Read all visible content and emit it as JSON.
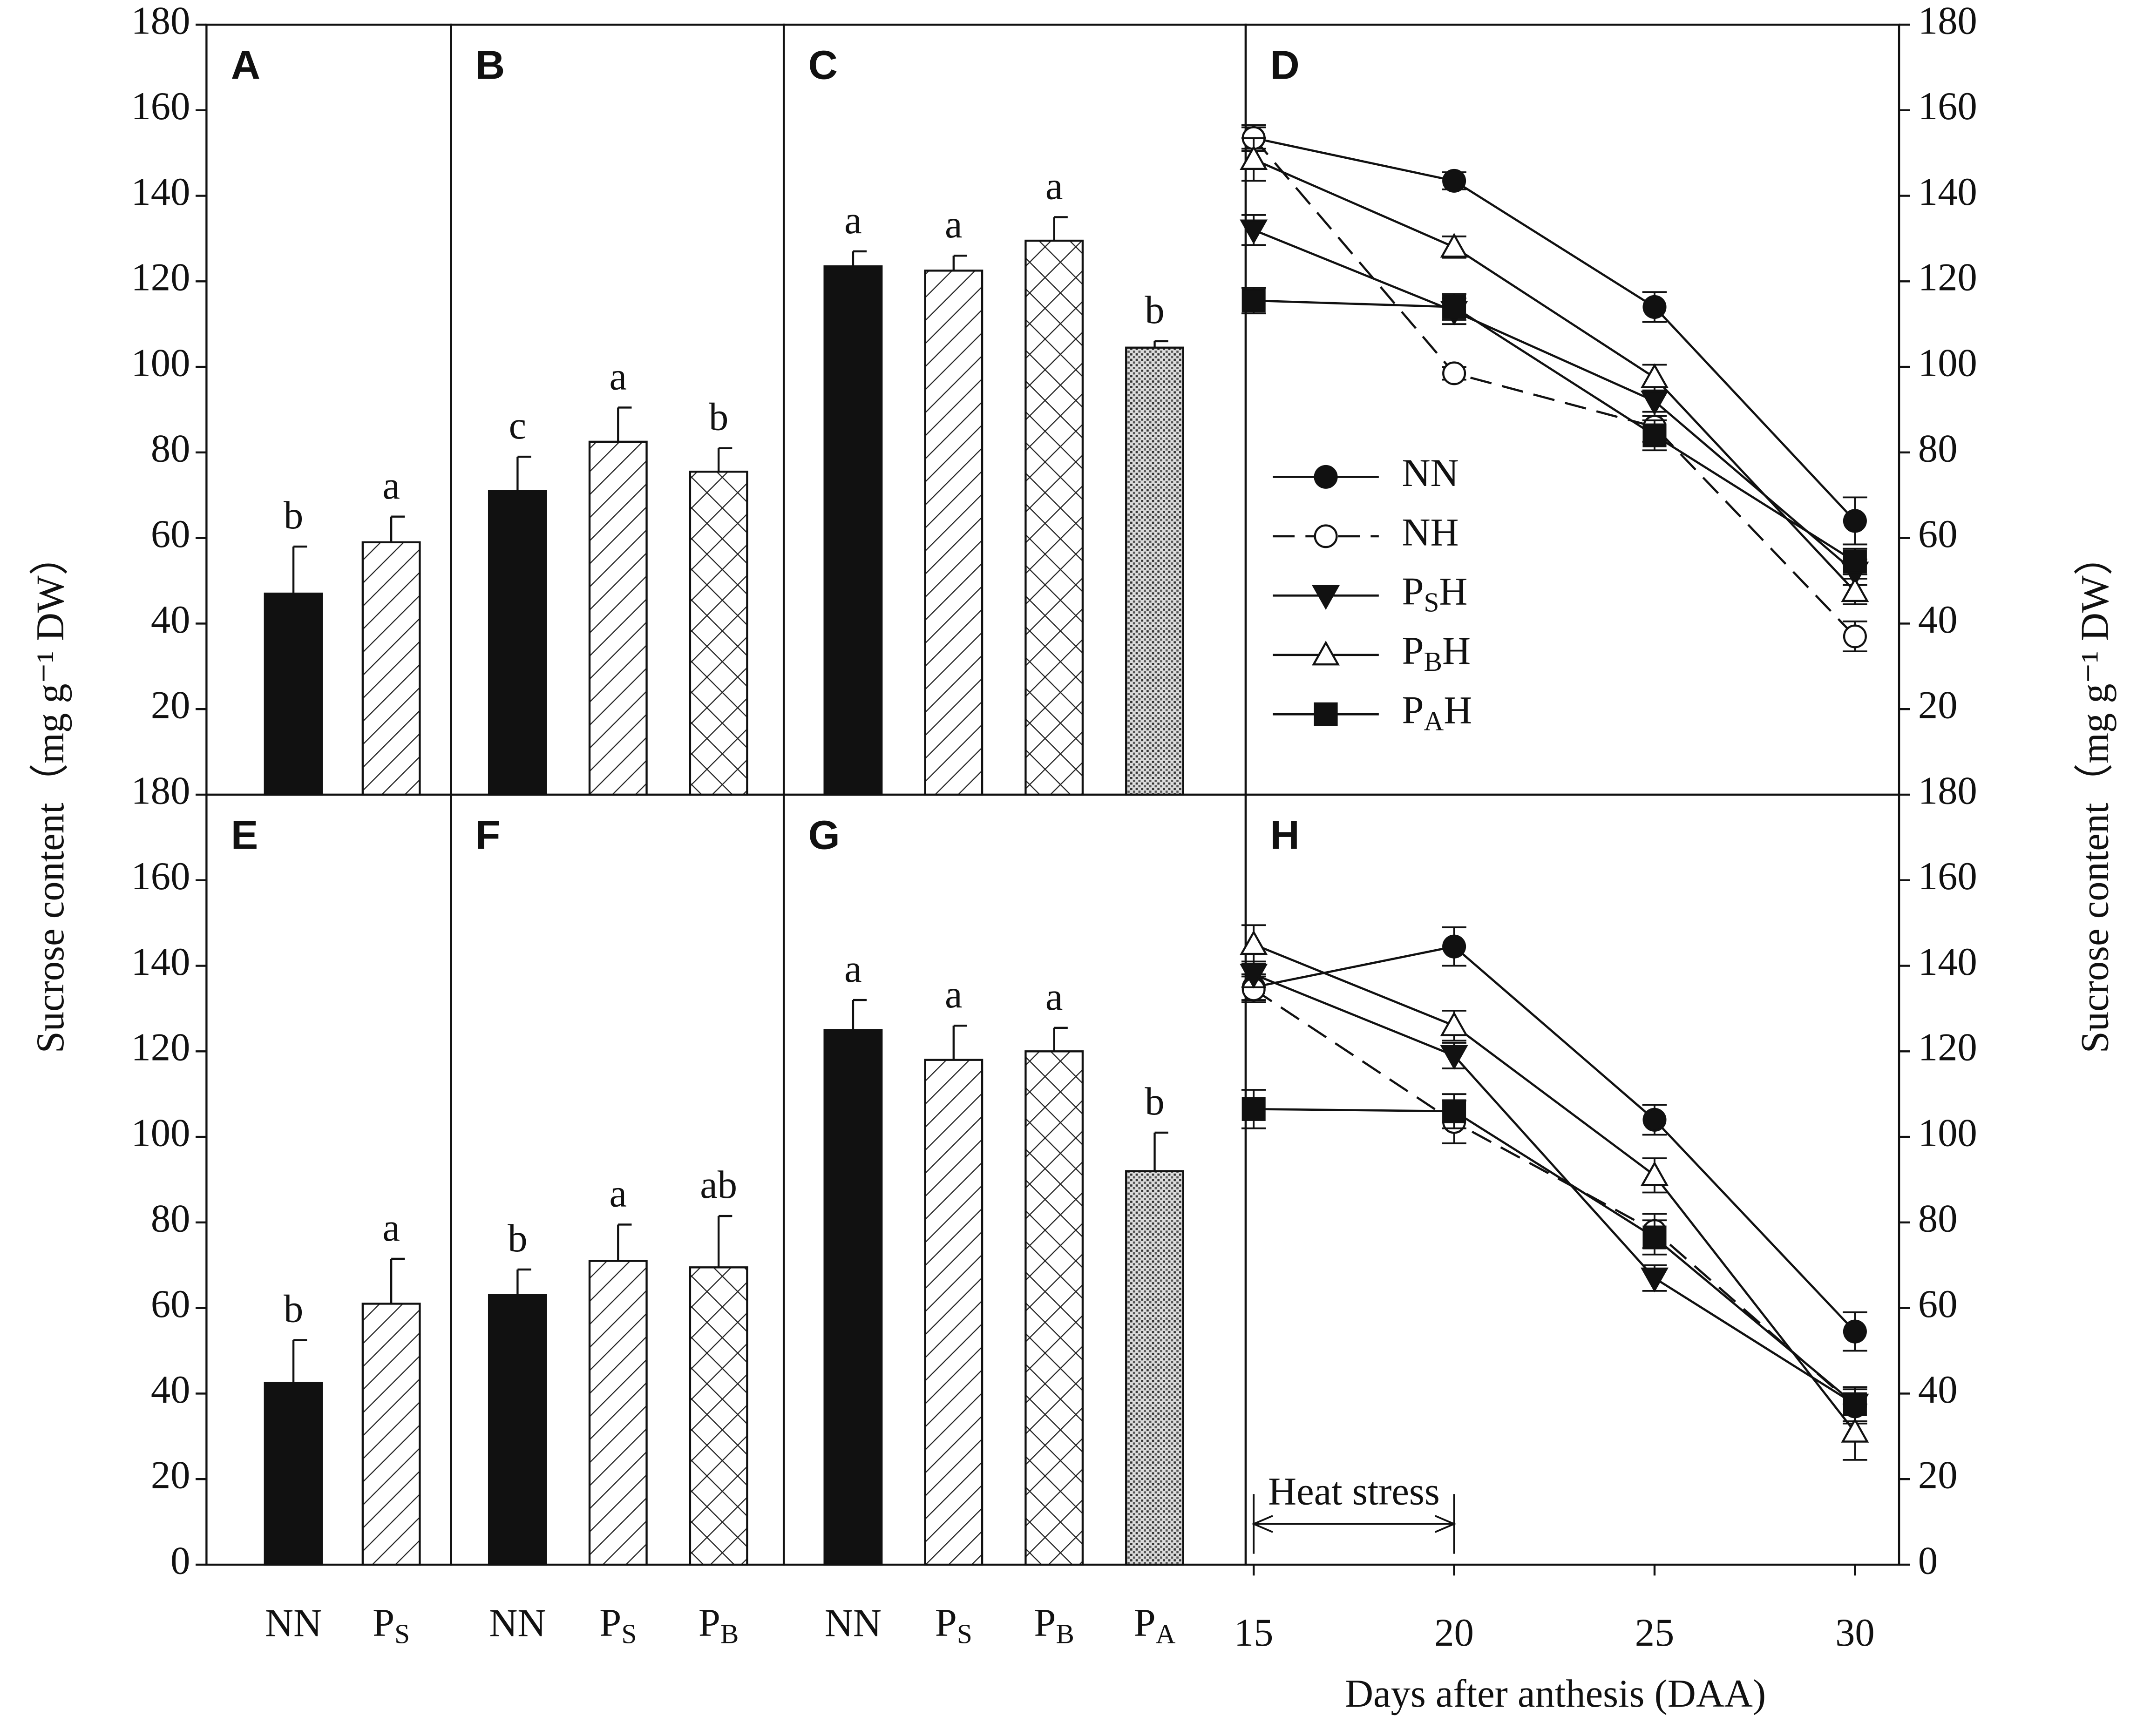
{
  "chart_data": [
    {
      "type": "bar",
      "label": "A",
      "categories": [
        "NN",
        "PS"
      ],
      "values": [
        47,
        59
      ],
      "errors": [
        11,
        6
      ],
      "letters": [
        "b",
        "a"
      ],
      "patterns": [
        "solid",
        "hatch"
      ],
      "color": "#111111",
      "ylim": [
        0,
        180
      ],
      "yticks": [
        20,
        40,
        60,
        80,
        100,
        120,
        140,
        160,
        180
      ],
      "yaxis": "left",
      "ylabel": "Sucrose content（mg g⁻¹ DW）"
    },
    {
      "type": "bar",
      "label": "B",
      "categories": [
        "NN",
        "PS",
        "PB"
      ],
      "values": [
        71,
        82.5,
        75.5
      ],
      "errors": [
        8,
        8,
        5.5
      ],
      "letters": [
        "c",
        "a",
        "b"
      ],
      "patterns": [
        "solid",
        "hatch",
        "cross"
      ],
      "color": "#111111",
      "ylim": [
        0,
        180
      ]
    },
    {
      "type": "bar",
      "label": "C",
      "categories": [
        "NN",
        "PS",
        "PB",
        "PA"
      ],
      "values": [
        123.5,
        122.5,
        129.5,
        104.5
      ],
      "errors": [
        3.5,
        3.5,
        5.5,
        1.5
      ],
      "letters": [
        "a",
        "a",
        "a",
        "b"
      ],
      "patterns": [
        "solid",
        "hatch",
        "cross",
        "dots"
      ],
      "color": "#111111",
      "ylim": [
        0,
        180
      ]
    },
    {
      "type": "line",
      "label": "D",
      "x": [
        15,
        20,
        25,
        30
      ],
      "xlim": [
        14.8,
        31.1
      ],
      "ylim": [
        0,
        180
      ],
      "yticks": [
        20,
        40,
        60,
        80,
        100,
        120,
        140,
        160,
        180
      ],
      "yaxis": "right",
      "ylabel": "Sucrose content（mg g⁻¹ DW）",
      "legend": "left",
      "series": [
        {
          "name": "NN",
          "color": "#111111",
          "marker": "circle",
          "filled": true,
          "dashed": false,
          "values": [
            153.5,
            143.5,
            114,
            64
          ],
          "errors": [
            3,
            2,
            3.5,
            5.5
          ]
        },
        {
          "name": "NH",
          "color": "#111111",
          "marker": "circle",
          "filled": false,
          "dashed": true,
          "values": [
            153.5,
            98.5,
            86,
            37
          ],
          "errors": [
            2.5,
            1.5,
            3.5,
            3.5
          ]
        },
        {
          "name": "PSH",
          "color": "#111111",
          "marker": "triangle-down",
          "filled": true,
          "dashed": false,
          "values": [
            132,
            113,
            92,
            52
          ],
          "errors": [
            3.5,
            3,
            3.5,
            3
          ]
        },
        {
          "name": "PBH",
          "color": "#111111",
          "marker": "triangle-up",
          "filled": false,
          "dashed": false,
          "values": [
            148.5,
            128,
            97.5,
            47.5
          ],
          "errors": [
            5,
            2.5,
            3,
            3
          ]
        },
        {
          "name": "PAH",
          "color": "#111111",
          "marker": "square",
          "filled": true,
          "dashed": false,
          "values": [
            115.5,
            114,
            84,
            54.5
          ],
          "errors": [
            3,
            3,
            3.5,
            3
          ]
        }
      ]
    },
    {
      "type": "bar",
      "label": "E",
      "categories": [
        "NN",
        "PS"
      ],
      "values": [
        42.5,
        61
      ],
      "errors": [
        10,
        10.5
      ],
      "letters": [
        "b",
        "a"
      ],
      "patterns": [
        "solid",
        "hatch"
      ],
      "color": "#111111",
      "ylim": [
        0,
        180
      ],
      "yticks": [
        0,
        20,
        40,
        60,
        80,
        100,
        120,
        140,
        160,
        180
      ],
      "yaxis": "left"
    },
    {
      "type": "bar",
      "label": "F",
      "categories": [
        "NN",
        "PS",
        "PB"
      ],
      "values": [
        63,
        71,
        69.5
      ],
      "errors": [
        6,
        8.5,
        12
      ],
      "letters": [
        "b",
        "a",
        "ab"
      ],
      "patterns": [
        "solid",
        "hatch",
        "cross"
      ],
      "color": "#111111",
      "ylim": [
        0,
        180
      ]
    },
    {
      "type": "bar",
      "label": "G",
      "categories": [
        "NN",
        "PS",
        "PB",
        "PA"
      ],
      "values": [
        125,
        118,
        120,
        92
      ],
      "errors": [
        7,
        8,
        5.5,
        9
      ],
      "letters": [
        "a",
        "a",
        "a",
        "b"
      ],
      "patterns": [
        "solid",
        "hatch",
        "cross",
        "dots"
      ],
      "color": "#111111",
      "ylim": [
        0,
        180
      ]
    },
    {
      "type": "line",
      "label": "H",
      "x": [
        15,
        20,
        25,
        30
      ],
      "xlim": [
        14.8,
        31.1
      ],
      "xticks": [
        15,
        20,
        25,
        30
      ],
      "xlabel": "Days after anthesis (DAA)",
      "ylim": [
        0,
        180
      ],
      "yticks": [
        0,
        20,
        40,
        60,
        80,
        100,
        120,
        140,
        160,
        180
      ],
      "yaxis": "right",
      "annotation": {
        "text": "Heat stress",
        "from": 15,
        "to": 20
      },
      "series": [
        {
          "name": "NN",
          "color": "#111111",
          "marker": "circle",
          "filled": true,
          "dashed": false,
          "values": [
            135,
            144.5,
            104,
            54.5
          ],
          "errors": [
            3,
            4.5,
            3.5,
            4.5
          ]
        },
        {
          "name": "NH",
          "color": "#111111",
          "marker": "circle",
          "filled": false,
          "dashed": true,
          "values": [
            134.5,
            103.5,
            78,
            37
          ],
          "errors": [
            3,
            5,
            4,
            4
          ]
        },
        {
          "name": "PSH",
          "color": "#111111",
          "marker": "triangle-down",
          "filled": true,
          "dashed": false,
          "values": [
            138,
            119,
            67,
            37.5
          ],
          "errors": [
            3,
            3,
            3,
            4
          ]
        },
        {
          "name": "PBH",
          "color": "#111111",
          "marker": "triangle-up",
          "filled": false,
          "dashed": false,
          "values": [
            145,
            126,
            91,
            31
          ],
          "errors": [
            4.5,
            3.5,
            4,
            6.5
          ]
        },
        {
          "name": "PAH",
          "color": "#111111",
          "marker": "square",
          "filled": true,
          "dashed": false,
          "values": [
            106.5,
            106,
            76.5,
            37.5
          ],
          "errors": [
            4.5,
            4,
            4,
            4
          ]
        }
      ]
    }
  ]
}
